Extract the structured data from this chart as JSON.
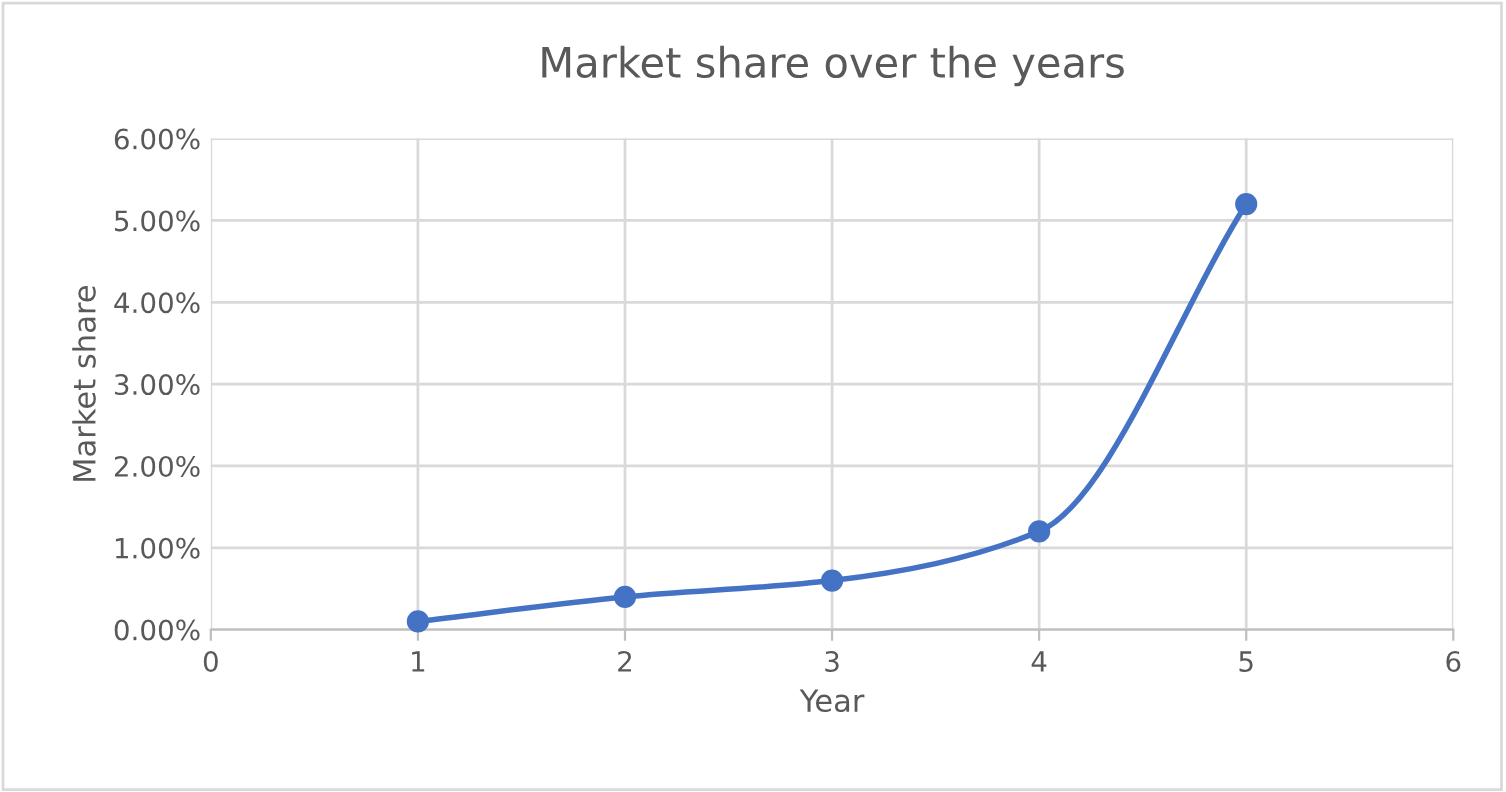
{
  "chart_data": {
    "type": "line",
    "title": "Market share over the years",
    "xlabel": "Year",
    "ylabel": "Market share",
    "x": [
      1,
      2,
      3,
      4,
      5
    ],
    "series": [
      {
        "color": "#4472c4",
        "values": [
          0.1,
          0.4,
          0.6,
          1.2,
          5.2
        ]
      }
    ],
    "xlim": [
      0,
      6
    ],
    "xticks": [
      0,
      1,
      2,
      3,
      4,
      5,
      6
    ],
    "ylim": [
      0,
      6
    ],
    "yticks": [
      {
        "value": 0,
        "label": "0.00%"
      },
      {
        "value": 1,
        "label": "1.00%"
      },
      {
        "value": 2,
        "label": "2.00%"
      },
      {
        "value": 3,
        "label": "3.00%"
      },
      {
        "value": 4,
        "label": "4.00%"
      },
      {
        "value": 5,
        "label": "5.00%"
      },
      {
        "value": 6,
        "label": "6.00%"
      }
    ],
    "grid": true,
    "marker": "circle",
    "line_style": "solid"
  }
}
